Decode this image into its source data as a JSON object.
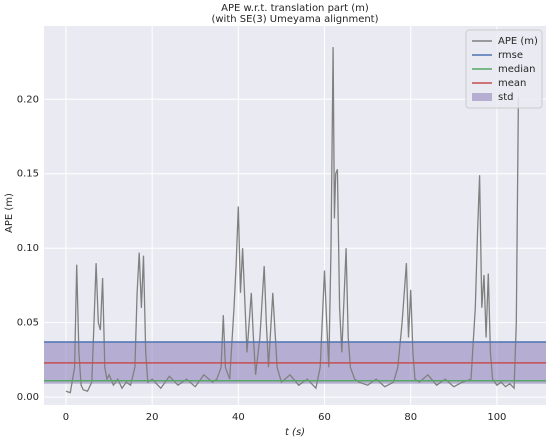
{
  "chart_data": {
    "type": "line",
    "title": [
      "APE w.r.t. translation part (m)",
      "(with SE(3) Umeyama alignment)"
    ],
    "xlabel": "t (s)",
    "ylabel": "APE (m)",
    "x": [
      0,
      1,
      2,
      2.5,
      3,
      3.5,
      4,
      5,
      6,
      6.5,
      7,
      7.5,
      8,
      8.5,
      9,
      9.5,
      10,
      11,
      12,
      13,
      14,
      15,
      16,
      16.5,
      17,
      17.5,
      18,
      18.5,
      19,
      20,
      22,
      24,
      26,
      28,
      30,
      32,
      34,
      35,
      36,
      36.5,
      37,
      38,
      39,
      39.5,
      40,
      40.5,
      41,
      42,
      43,
      43.5,
      44,
      45,
      46,
      46.5,
      47,
      48,
      49,
      50,
      52,
      54,
      56,
      58,
      59,
      60,
      60.5,
      61,
      61.5,
      62,
      62.3,
      62.6,
      63,
      63.5,
      64,
      65,
      65.5,
      66,
      67,
      68,
      70,
      72,
      74,
      76,
      77,
      78,
      79,
      79.5,
      80,
      80.5,
      81,
      82,
      84,
      86,
      88,
      90,
      92,
      94,
      95,
      95.5,
      96,
      96.5,
      97,
      97.5,
      98,
      98.5,
      99,
      100,
      101,
      102,
      103,
      104,
      104.5,
      105
    ],
    "series": [
      {
        "name": "APE (m)",
        "color": "#808080",
        "values": [
          0.004,
          0.003,
          0.02,
          0.089,
          0.03,
          0.008,
          0.005,
          0.004,
          0.01,
          0.05,
          0.09,
          0.05,
          0.045,
          0.08,
          0.02,
          0.012,
          0.015,
          0.008,
          0.012,
          0.006,
          0.01,
          0.008,
          0.02,
          0.07,
          0.097,
          0.06,
          0.095,
          0.03,
          0.01,
          0.012,
          0.006,
          0.014,
          0.008,
          0.012,
          0.007,
          0.015,
          0.01,
          0.012,
          0.02,
          0.055,
          0.02,
          0.012,
          0.06,
          0.09,
          0.128,
          0.07,
          0.1,
          0.03,
          0.07,
          0.04,
          0.015,
          0.04,
          0.088,
          0.05,
          0.02,
          0.07,
          0.02,
          0.01,
          0.015,
          0.008,
          0.012,
          0.006,
          0.02,
          0.085,
          0.05,
          0.02,
          0.1,
          0.235,
          0.12,
          0.15,
          0.153,
          0.06,
          0.03,
          0.1,
          0.04,
          0.02,
          0.012,
          0.01,
          0.008,
          0.012,
          0.007,
          0.01,
          0.02,
          0.05,
          0.09,
          0.04,
          0.072,
          0.03,
          0.012,
          0.01,
          0.015,
          0.008,
          0.012,
          0.007,
          0.01,
          0.012,
          0.06,
          0.11,
          0.149,
          0.06,
          0.082,
          0.04,
          0.083,
          0.03,
          0.012,
          0.008,
          0.01,
          0.007,
          0.009,
          0.006,
          0.05,
          0.201
        ]
      }
    ],
    "stat_lines": [
      {
        "name": "rmse",
        "color": "#4c72b0",
        "value": 0.037
      },
      {
        "name": "median",
        "color": "#55a868",
        "value": 0.011
      },
      {
        "name": "mean",
        "color": "#c44e52",
        "value": 0.023
      }
    ],
    "std_band": {
      "name": "std",
      "color": "#8172b2",
      "value": 0.014
    },
    "xlim": [
      -5.1,
      111.4
    ],
    "ylim": [
      -0.0053,
      0.2492
    ],
    "xticks": [
      0,
      20,
      40,
      60,
      80,
      100
    ],
    "yticks": [
      {
        "value": 0,
        "label": "0.00"
      },
      {
        "value": 0.05,
        "label": "0.05"
      },
      {
        "value": 0.1,
        "label": "0.10"
      },
      {
        "value": 0.15,
        "label": "0.15"
      },
      {
        "value": 0.2,
        "label": "0.20"
      }
    ],
    "grid": true,
    "legend": "upper right"
  }
}
